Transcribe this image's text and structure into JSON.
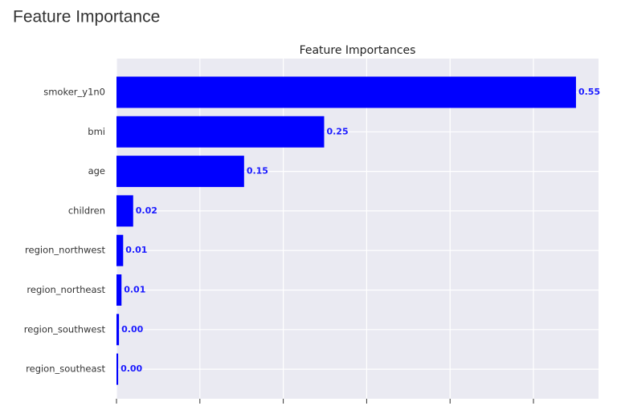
{
  "page_title": "Feature Importance",
  "chart_data": {
    "type": "barh",
    "title": "Feature Importances",
    "categories": [
      "smoker_y1n0",
      "bmi",
      "age",
      "children",
      "region_northwest",
      "region_northeast",
      "region_southwest",
      "region_southeast"
    ],
    "values": [
      0.551,
      0.249,
      0.153,
      0.02,
      0.008,
      0.006,
      0.003,
      0.002
    ],
    "value_labels": [
      "0.55",
      "0.25",
      "0.15",
      "0.02",
      "0.01",
      "0.01",
      "0.00",
      "0.00"
    ],
    "color": "#0000ff",
    "xlim": [
      0,
      0.578
    ],
    "xticks": [
      0,
      0.1,
      0.2,
      0.3,
      0.4,
      0.5
    ],
    "grid": true
  }
}
